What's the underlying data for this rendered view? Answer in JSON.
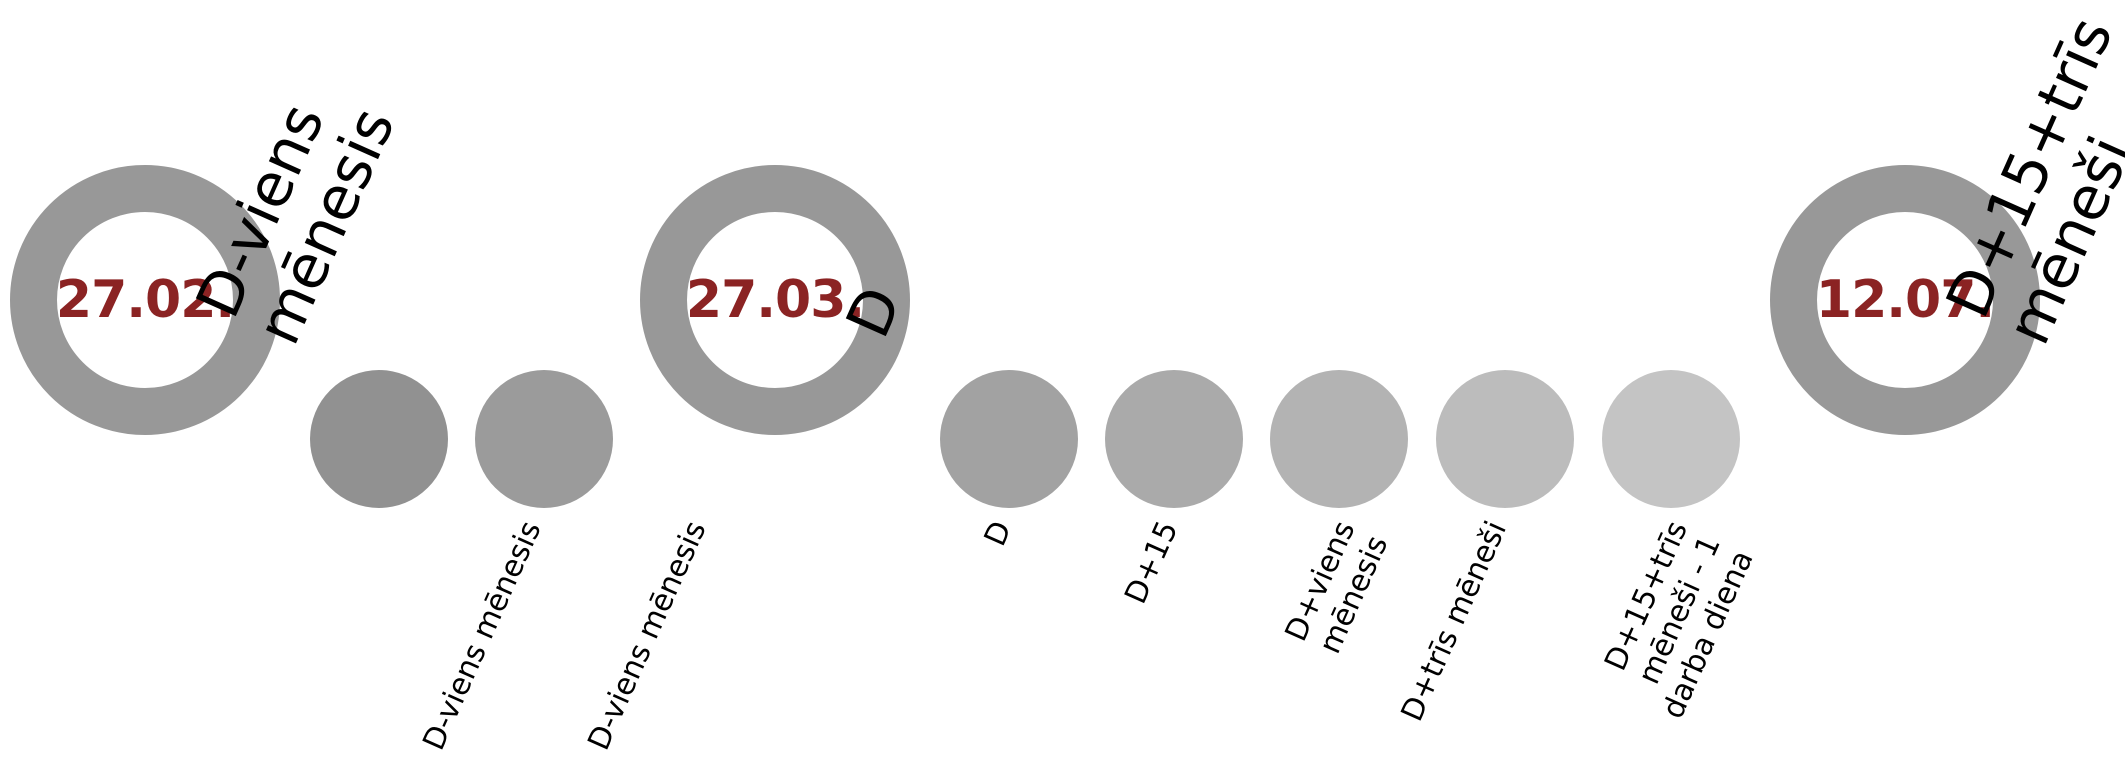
{
  "milestones": [
    {
      "date": "27.02.",
      "label_lines": [
        "D-viens",
        "mēnesis"
      ]
    },
    {
      "date": "27.03.",
      "label_lines": [
        "D"
      ]
    },
    {
      "date": "12.07.",
      "label_lines": [
        "D+15+trīs",
        "mēneši"
      ]
    }
  ],
  "steps": [
    {
      "label_lines": [
        "D-viens mēnesis"
      ],
      "color": "#919191"
    },
    {
      "label_lines": [
        "D-viens mēnesis"
      ],
      "color": "#9b9b9b"
    },
    {
      "label_lines": [
        "D"
      ],
      "color": "#a2a2a2"
    },
    {
      "label_lines": [
        "D+15"
      ],
      "color": "#aaaaaa"
    },
    {
      "label_lines": [
        "D+viens",
        "mēnesis"
      ],
      "color": "#b3b3b3"
    },
    {
      "label_lines": [
        "D+trīs mēneši"
      ],
      "color": "#bcbcbc"
    },
    {
      "label_lines": [
        "D+15+trīs",
        "mēneši - 1",
        "darba diena"
      ],
      "color": "#c4c4c4"
    }
  ],
  "colors": {
    "ring": "#989898",
    "date_text": "#8b2323",
    "label_text": "#000000"
  }
}
